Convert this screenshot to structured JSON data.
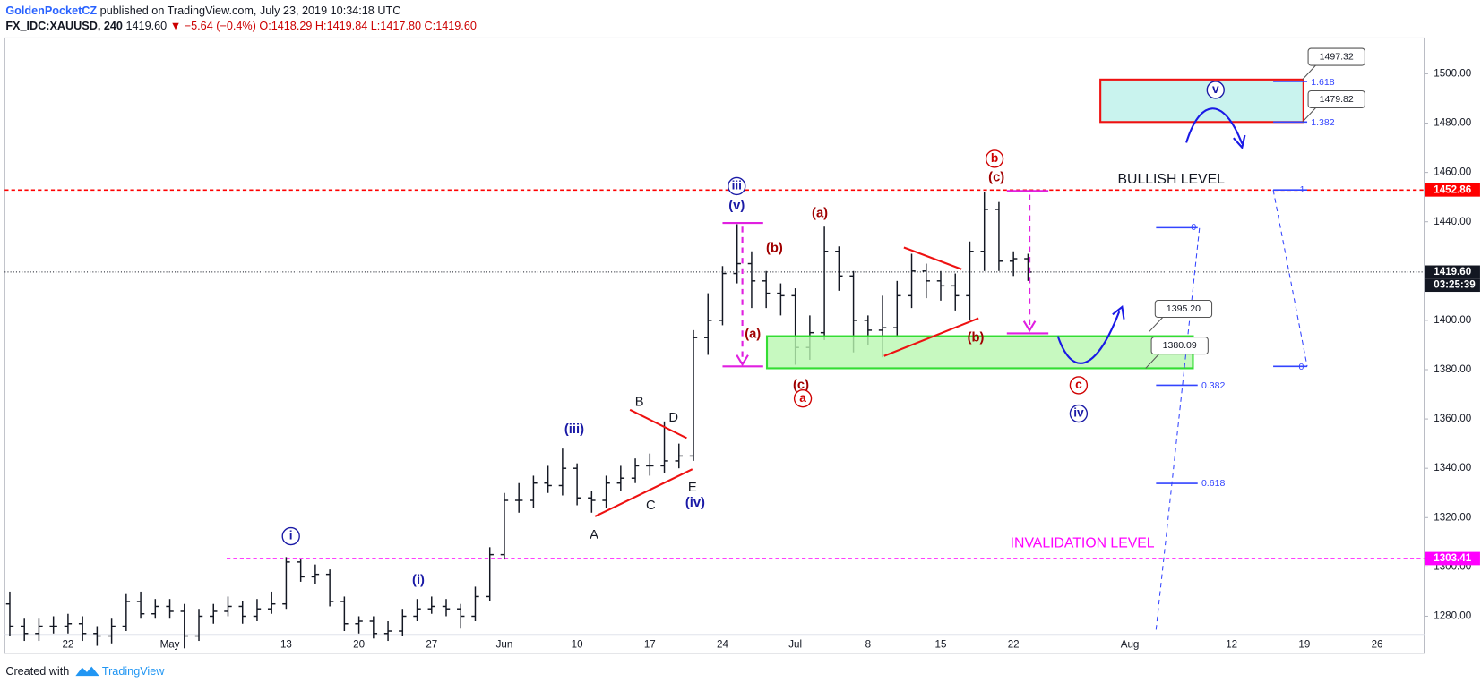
{
  "header": {
    "author": "GoldenPocketCZ",
    "published": "published on TradingView.com, July 23, 2019 10:34:18 UTC",
    "symbol": "FX_IDC:XAUUSD, 240",
    "last": "1419.60",
    "arrow": "▼",
    "change": "−5.64 (−0.4%)",
    "o": "O:1418.29",
    "h": "H:1419.84",
    "l": "L:1417.80",
    "c": "C:1419.60"
  },
  "footer": {
    "created": "Created with",
    "brand": "TradingView"
  },
  "chart_data": {
    "type": "ohlc",
    "color": "#131722",
    "categories": [
      null,
      null,
      null,
      null,
      "22",
      null,
      null,
      null,
      null,
      null,
      null,
      "May",
      null,
      null,
      null,
      null,
      null,
      null,
      null,
      "13",
      null,
      null,
      null,
      null,
      "20",
      null,
      null,
      null,
      null,
      "27",
      null,
      null,
      null,
      null,
      "Jun",
      null,
      null,
      null,
      null,
      "10",
      null,
      null,
      null,
      null,
      "17",
      null,
      null,
      null,
      null,
      "24",
      null,
      null,
      null,
      null,
      "Jul",
      null,
      null,
      null,
      null,
      "8",
      null,
      null,
      null,
      null,
      "15",
      null,
      null,
      null,
      null,
      "22",
      null,
      null,
      null,
      null,
      null,
      null,
      null,
      "Aug",
      null,
      null,
      null,
      null,
      null,
      null,
      "12",
      null,
      null,
      null,
      null,
      "19",
      null,
      null,
      null,
      null,
      "26",
      null,
      null,
      null
    ],
    "open": [
      1285,
      1276,
      1273,
      1276,
      1276,
      1277,
      1273,
      1272,
      1276,
      1286,
      1281,
      1284,
      1282,
      1272,
      1280,
      1282,
      1284,
      1280,
      1283,
      1285,
      1302,
      1296,
      1297,
      1286,
      1277,
      1278,
      1273,
      1274,
      1280,
      1283,
      1284,
      1283,
      1280,
      1288,
      1305,
      1327,
      1327,
      1334,
      1333,
      1340,
      1328,
      1327,
      1334,
      1336,
      1341,
      1341,
      1343,
      1345,
      1393,
      1400,
      1419,
      1423,
      1416,
      1411,
      1410,
      1389,
      1395,
      1428,
      1418,
      1400,
      1396,
      1397,
      1410,
      1420,
      1416,
      1414,
      1410,
      1428,
      1445,
      1424,
      1425,
      null,
      null,
      null,
      null,
      null,
      null,
      null,
      null,
      null,
      null,
      null,
      null,
      null,
      null,
      null,
      null,
      null,
      null,
      null,
      null,
      null,
      null,
      null,
      null,
      null,
      null,
      null
    ],
    "high": [
      1290,
      1279,
      1279,
      1280,
      1281,
      1280,
      1276,
      1279,
      1289,
      1290,
      1287,
      1287,
      1285,
      1283,
      1285,
      1288,
      1286,
      1287,
      1290,
      1304,
      1303,
      1301,
      1299,
      1288,
      1280,
      1280,
      1278,
      1283,
      1287,
      1288,
      1287,
      1285,
      1292,
      1308,
      1330,
      1334,
      1337,
      1341,
      1348,
      1342,
      1331,
      1337,
      1341,
      1344,
      1346,
      1359,
      1350,
      1396,
      1411,
      1422,
      1439,
      1428,
      1420,
      1415,
      1413,
      1402,
      1438,
      1430,
      1420,
      1402,
      1410,
      1416,
      1427,
      1423,
      1420,
      1419,
      1432,
      1452,
      1448,
      1428,
      1427,
      null,
      null,
      null,
      null,
      null,
      null,
      null,
      null,
      null,
      null,
      null,
      null,
      null,
      null,
      null,
      null,
      null,
      null,
      null,
      null,
      null,
      null,
      null,
      null,
      null,
      null,
      null
    ],
    "low": [
      1272,
      1270,
      1270,
      1273,
      1273,
      1270,
      1268,
      1269,
      1274,
      1279,
      1279,
      1279,
      1267,
      1270,
      1277,
      1280,
      1277,
      1278,
      1281,
      1283,
      1294,
      1293,
      1284,
      1274,
      1273,
      1271,
      1270,
      1272,
      1278,
      1281,
      1280,
      1275,
      1278,
      1286,
      1303,
      1322,
      1324,
      1330,
      1329,
      1325,
      1322,
      1324,
      1331,
      1334,
      1337,
      1338,
      1340,
      1343,
      1386,
      1398,
      1415,
      1405,
      1405,
      1402,
      1382,
      1384,
      1392,
      1412,
      1387,
      1390,
      1385,
      1393,
      1405,
      1409,
      1408,
      1404,
      1400,
      1420,
      1420,
      1418,
      1416,
      null,
      null,
      null,
      null,
      null,
      null,
      null,
      null,
      null,
      null,
      null,
      null,
      null,
      null,
      null,
      null,
      null,
      null,
      null,
      null,
      null,
      null,
      null,
      null,
      null,
      null,
      null
    ],
    "close": [
      1276,
      1273,
      1276,
      1276,
      1277,
      1273,
      1272,
      1276,
      1286,
      1281,
      1284,
      1282,
      1272,
      1280,
      1282,
      1284,
      1280,
      1283,
      1285,
      1302,
      1296,
      1297,
      1286,
      1277,
      1278,
      1273,
      1274,
      1280,
      1283,
      1284,
      1283,
      1280,
      1288,
      1305,
      1327,
      1327,
      1334,
      1333,
      1340,
      1328,
      1327,
      1334,
      1336,
      1341,
      1341,
      1343,
      1345,
      1393,
      1400,
      1419,
      1423,
      1416,
      1411,
      1410,
      1389,
      1395,
      1428,
      1418,
      1400,
      1396,
      1397,
      1410,
      1420,
      1416,
      1414,
      1410,
      1428,
      1445,
      1424,
      1425,
      1419.6,
      null,
      null,
      null,
      null,
      null,
      null,
      null,
      null,
      null,
      null,
      null,
      null,
      null,
      null,
      null,
      null,
      null,
      null,
      null,
      null,
      null,
      null,
      null,
      null,
      null,
      null,
      null
    ],
    "ylim": [
      1265,
      1514.5
    ],
    "yticks": [
      {
        "value": 1280,
        "label": "1280.00"
      },
      {
        "value": 1300,
        "label": "1300.00"
      },
      {
        "value": 1320,
        "label": "1320.00"
      },
      {
        "value": 1340,
        "label": "1340.00"
      },
      {
        "value": 1360,
        "label": "1360.00"
      },
      {
        "value": 1380,
        "label": "1380.00"
      },
      {
        "value": 1400,
        "label": "1400.00"
      },
      {
        "value": 1420,
        "label": "1420.00"
      },
      {
        "value": 1440,
        "label": "1440.00"
      },
      {
        "value": 1460,
        "label": "1460.00"
      },
      {
        "value": 1480,
        "label": "1480.00"
      },
      {
        "value": 1500,
        "label": "1500.00"
      }
    ],
    "price_tags": [
      {
        "value": 1452.86,
        "label": "1452.86",
        "color": "#ff0000",
        "line": "dashed"
      },
      {
        "value": 1419.6,
        "label": "1419.60",
        "color": "#131722",
        "line": "dotted"
      },
      {
        "value": 1303.41,
        "label": "1303.41",
        "color": "#ff00ff",
        "line": "dashed"
      }
    ],
    "countdown": "03:25:39",
    "annotations": [
      {
        "text": "i",
        "color": "#1a1aa6",
        "circled": true
      },
      {
        "text": "(i)",
        "color": "#1a1aa6"
      },
      {
        "text": "(iii)",
        "color": "#1a1aa6"
      },
      {
        "text": "A",
        "color": "#131722"
      },
      {
        "text": "B",
        "color": "#131722"
      },
      {
        "text": "C",
        "color": "#131722"
      },
      {
        "text": "D",
        "color": "#131722"
      },
      {
        "text": "E",
        "color": "#131722"
      },
      {
        "text": "(iv)",
        "color": "#1a1aa6"
      },
      {
        "text": "iii",
        "color": "#1a1aa6",
        "circled": true
      },
      {
        "text": "(v)",
        "color": "#1a1aa6"
      },
      {
        "text": "(b)",
        "color": "#a00000"
      },
      {
        "text": "(a)",
        "color": "#a00000"
      },
      {
        "text": "(a)",
        "color": "#a00000"
      },
      {
        "text": "(c)",
        "color": "#a00000"
      },
      {
        "text": "a",
        "color": "#d00000",
        "circled": true
      },
      {
        "text": "b",
        "color": "#d00000",
        "circled": true
      },
      {
        "text": "(c)",
        "color": "#a00000"
      },
      {
        "text": "(b)",
        "color": "#a00000"
      },
      {
        "text": "c",
        "color": "#d00000",
        "circled": true
      },
      {
        "text": "iv",
        "color": "#1a1aa6",
        "circled": true
      },
      {
        "text": "v",
        "color": "#1a1aa6",
        "circled": true
      },
      {
        "text": "BULLISH LEVEL",
        "color": "#131722"
      },
      {
        "text": "INVALIDATION LEVEL",
        "color": "#ff00ff"
      },
      {
        "text": "1.618",
        "color": "#3344ff"
      },
      {
        "text": "1.382",
        "color": "#3344ff"
      },
      {
        "text": "1",
        "color": "#3344ff"
      },
      {
        "text": "0",
        "color": "#3344ff"
      },
      {
        "text": "0",
        "color": "#3344ff"
      },
      {
        "text": "0.382",
        "color": "#3344ff"
      },
      {
        "text": "0.618",
        "color": "#3344ff"
      },
      {
        "text": "1497.32",
        "color": "#131722",
        "boxed": true
      },
      {
        "text": "1479.82",
        "color": "#131722",
        "boxed": true
      },
      {
        "text": "1395.20",
        "color": "#131722",
        "boxed": true
      },
      {
        "text": "1380.09",
        "color": "#131722",
        "boxed": true
      }
    ]
  }
}
